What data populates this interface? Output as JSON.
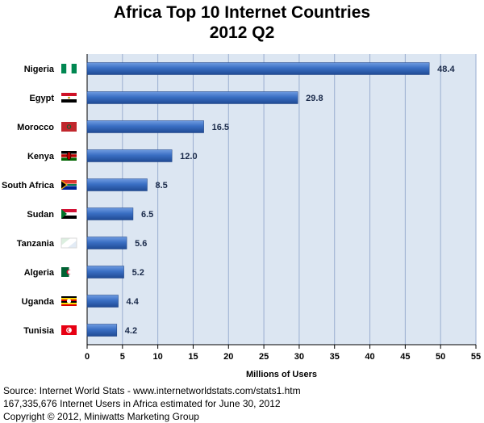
{
  "chart_data": {
    "type": "bar",
    "orientation": "horizontal",
    "title": [
      "Africa Top 10 Internet Countries",
      "2012 Q2"
    ],
    "categories": [
      "Nigeria",
      "Egypt",
      "Morocco",
      "Kenya",
      "South Africa",
      "Sudan",
      "Tanzania",
      "Algeria",
      "Uganda",
      "Tunisia"
    ],
    "values": [
      48.4,
      29.8,
      16.5,
      12.0,
      8.5,
      6.5,
      5.6,
      5.2,
      4.4,
      4.2
    ],
    "value_labels": [
      "48.4",
      "29.8",
      "16.5",
      "12.0",
      "8.5",
      "6.5",
      "5.6",
      "5.2",
      "4.4",
      "4.2"
    ],
    "xlabel": "Millions of Users",
    "ylabel": "",
    "xlim": [
      0,
      55
    ],
    "xticks": [
      0,
      5,
      10,
      15,
      20,
      25,
      30,
      35,
      40,
      45,
      50,
      55
    ],
    "grid": true,
    "legend": "none",
    "colors": {
      "bar": "#3a6fc4",
      "bar_dark": "#1f4a93",
      "bar_light": "#6f9be0",
      "plot_bg": "#dce6f2",
      "grid": "#9aaed0"
    },
    "flag_icons": [
      "nigeria-flag-icon",
      "egypt-flag-icon",
      "morocco-flag-icon",
      "kenya-flag-icon",
      "south-africa-flag-icon",
      "sudan-flag-icon",
      "tanzania-flag-icon",
      "algeria-flag-icon",
      "uganda-flag-icon",
      "tunisia-flag-icon"
    ]
  },
  "footer": {
    "source": "Source: Internet World Stats - www.internetworldstats.com/stats1.htm",
    "estimate": "167,335,676 Internet Users in Africa estimated for June 30, 2012",
    "copyright": "Copyright © 2012, Miniwatts Marketing Group"
  }
}
